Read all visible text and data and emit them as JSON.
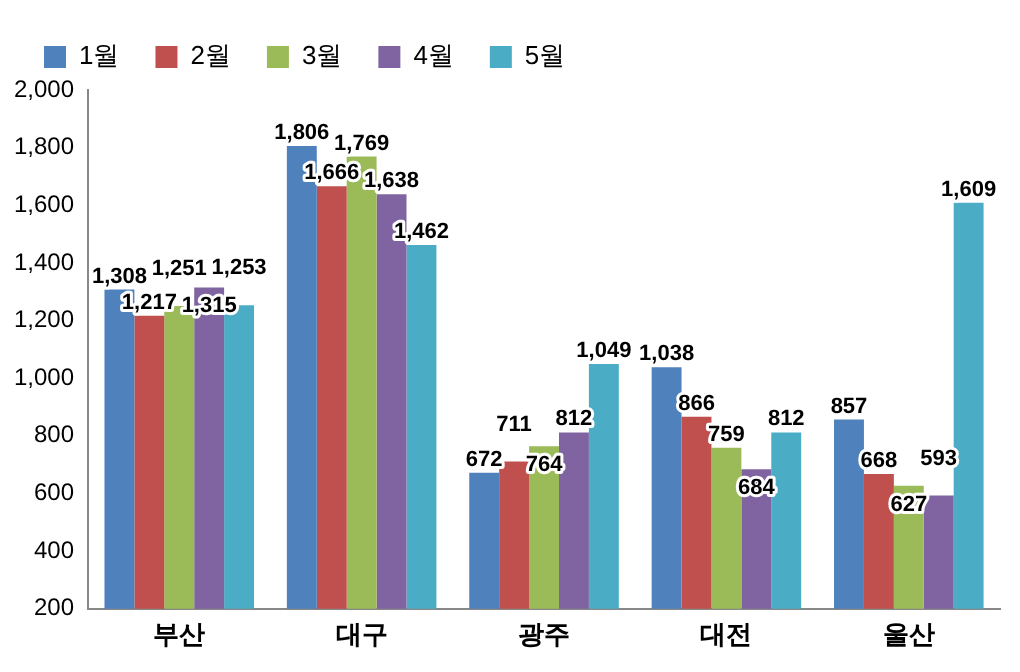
{
  "chart_data": {
    "type": "bar",
    "categories": [
      "부산",
      "대구",
      "광주",
      "대전",
      "울산"
    ],
    "series": [
      {
        "name": "1월",
        "color": "#4f81bd",
        "values": [
          1308,
          1806,
          672,
          1038,
          857
        ],
        "value_labels": [
          "1,308",
          "1,806",
          "672",
          "1,038",
          "857"
        ]
      },
      {
        "name": "2월",
        "color": "#c0504d",
        "values": [
          1217,
          1666,
          711,
          866,
          668
        ],
        "value_labels": [
          "1,217",
          "1,666",
          "711",
          "866",
          "668"
        ]
      },
      {
        "name": "3월",
        "color": "#9bbb59",
        "values": [
          1251,
          1769,
          764,
          759,
          627
        ],
        "value_labels": [
          "1,251",
          "1,769",
          "764",
          "759",
          "627"
        ]
      },
      {
        "name": "4월",
        "color": "#8064a2",
        "values": [
          1315,
          1638,
          812,
          684,
          593
        ],
        "value_labels": [
          "1,315",
          "1,638",
          "812",
          "684",
          "593"
        ]
      },
      {
        "name": "5월",
        "color": "#4bacc6",
        "values": [
          1253,
          1462,
          1049,
          812,
          1609
        ],
        "value_labels": [
          "1,253",
          "1,462",
          "1,049",
          "812",
          "1,609"
        ]
      }
    ],
    "ylim": [
      200,
      2000
    ],
    "yticks": [
      {
        "value": 200,
        "label": "200"
      },
      {
        "value": 400,
        "label": "400"
      },
      {
        "value": 600,
        "label": "600"
      },
      {
        "value": 800,
        "label": "800"
      },
      {
        "value": 1000,
        "label": "1,000"
      },
      {
        "value": 1200,
        "label": "1,200"
      },
      {
        "value": 1400,
        "label": "1,400"
      },
      {
        "value": 1600,
        "label": "1,600"
      },
      {
        "value": 1800,
        "label": "1,800"
      },
      {
        "value": 2000,
        "label": "2,000"
      }
    ],
    "grid": false,
    "legend": "top"
  }
}
